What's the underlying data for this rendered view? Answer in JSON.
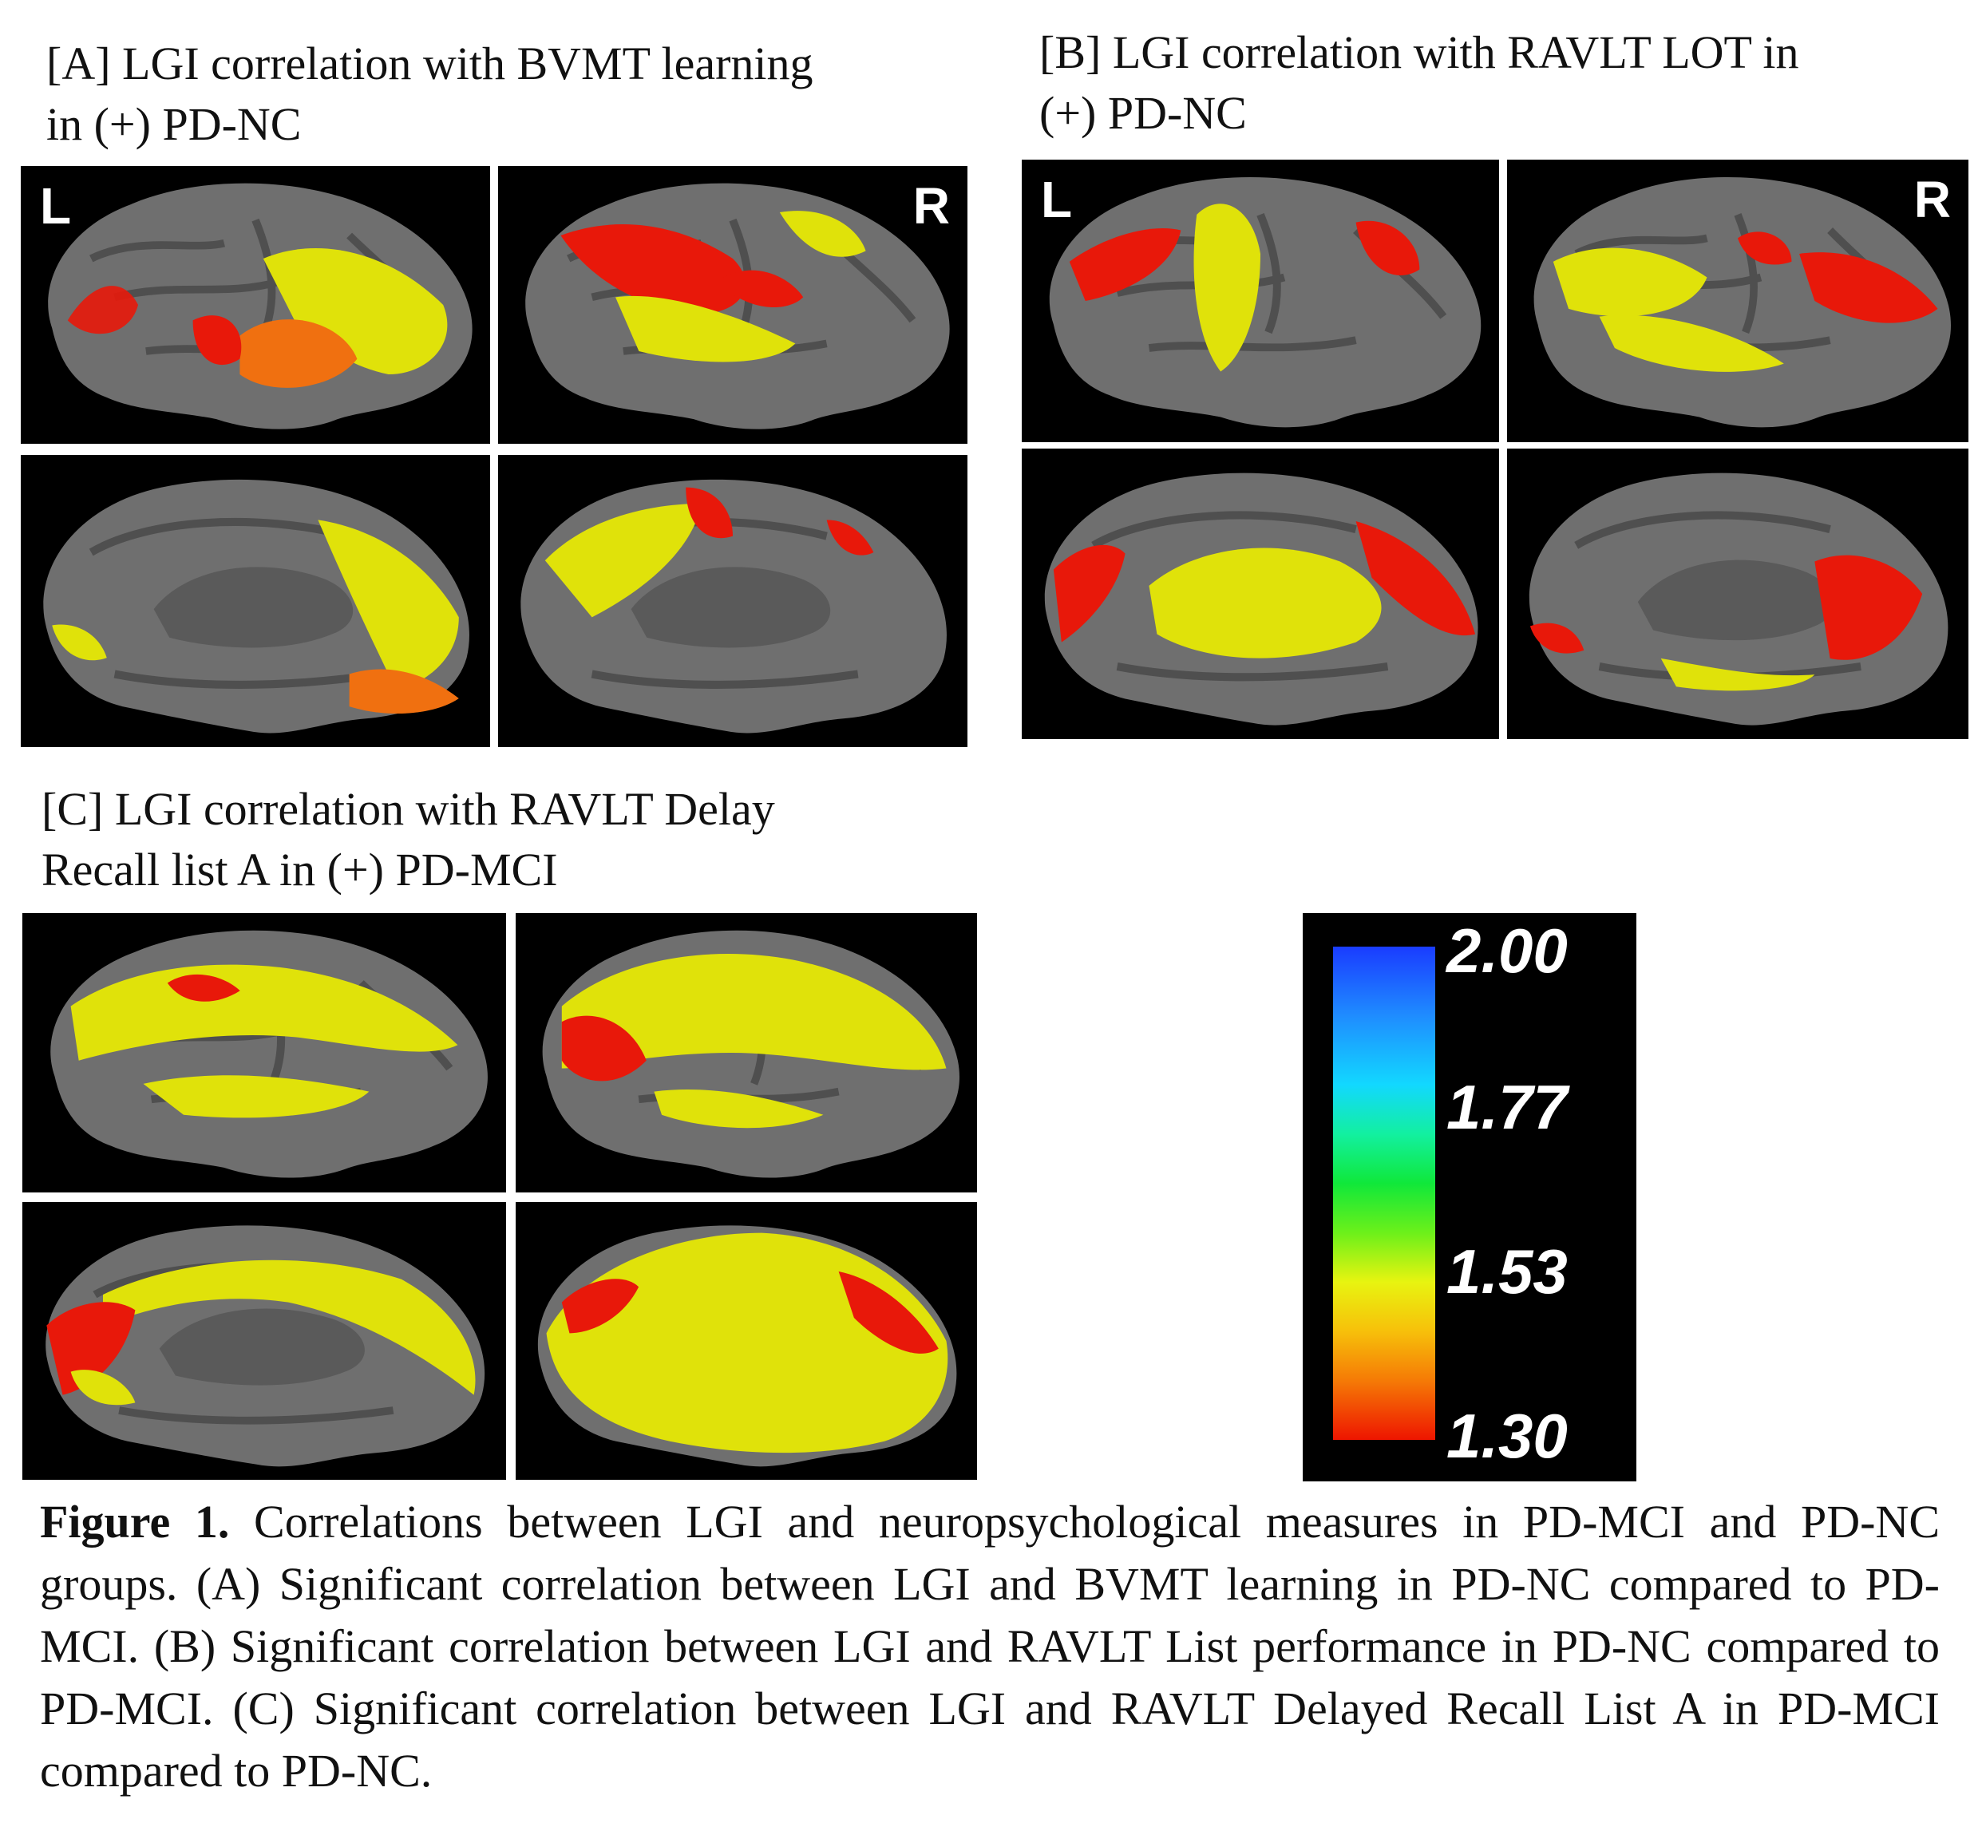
{
  "panels": {
    "a_title_line1": "[A] LGI correlation with BVMT learning",
    "a_title_line2": "in (+) PD-NC",
    "b_title_line1": "[B] LGI correlation with RAVLT LOT  in",
    "b_title_line2": "(+) PD-NC",
    "c_title_line1": "[C] LGI correlation with RAVLT Delay",
    "c_title_line2": "Recall list A in (+) PD-MCI",
    "left_label": "L",
    "right_label": "R"
  },
  "colorbar": {
    "max": "2.00",
    "tick2": "1.77",
    "tick3": "1.53",
    "min": "1.30",
    "colors": [
      "#1a3cff",
      "#12d8ff",
      "#10e83a",
      "#e8f410",
      "#f57a06",
      "#ee1500"
    ]
  },
  "caption": {
    "figure_label": "Figure 1.",
    "text": " Correlations between LGI and neuropsychological measures in PD-MCI and PD-NC groups. (A) Significant correlation between LGI and BVMT learning in PD-NC compared to PD-MCI. (B) Significant correlation between LGI and RAVLT List performance in PD-NC compared to PD-MCI. (C) Significant correlation between LGI and RAVLT Delayed Recall List A in PD-MCI compared to PD-NC."
  }
}
